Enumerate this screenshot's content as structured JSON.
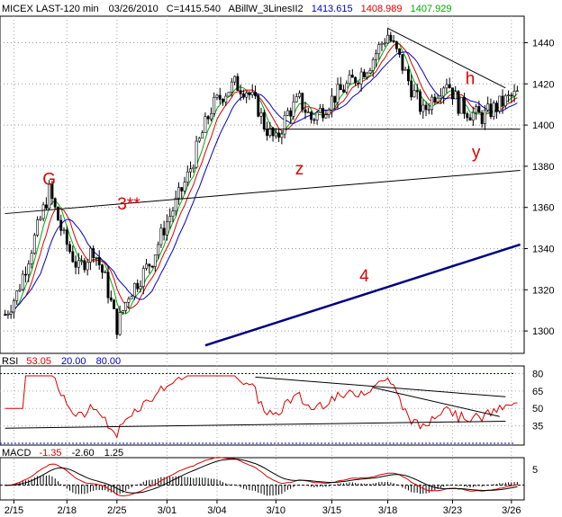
{
  "chart_data": [
    {
      "type": "candlestick",
      "header": {
        "symbol": "MICEX LAST-120 min",
        "date": "03/26/2010",
        "close": "C=1415.540",
        "indicator": "ABillW_3LinesII2",
        "ma_values": [
          {
            "value": "1413.615",
            "color": "#0000cc"
          },
          {
            "value": "1408.989",
            "color": "#dd0000"
          },
          {
            "value": "1407.929",
            "color": "#00aa00"
          }
        ]
      },
      "y_ticks": [
        1300,
        1320,
        1340,
        1360,
        1380,
        1400,
        1420,
        1440
      ],
      "ylim": [
        1290,
        1452
      ],
      "x_ticks": [
        "2/15",
        "2/18",
        "2/25",
        "3/01",
        "3/04",
        "3/10",
        "3/15",
        "3/18",
        "3/23",
        "3/26"
      ],
      "x_tick_index": [
        3,
        21,
        38,
        55,
        72,
        92,
        111,
        130,
        152,
        172
      ],
      "bar_count": 175,
      "moving_averages": [
        "#00aa00",
        "#dd0000",
        "#0000cc"
      ],
      "annotations": [
        {
          "text": "G",
          "bar": 15,
          "y": 1371,
          "color": "#dd0000"
        },
        {
          "text": "3**",
          "bar": 42,
          "y": 1359,
          "color": "#dd0000"
        },
        {
          "text": "z",
          "bar": 100,
          "y": 1376,
          "color": "#dd0000"
        },
        {
          "text": "4",
          "bar": 122,
          "y": 1324,
          "color": "#dd0000"
        },
        {
          "text": "h",
          "bar": 158,
          "y": 1420,
          "color": "#dd0000"
        },
        {
          "text": "y",
          "bar": 160,
          "y": 1384,
          "color": "#dd0000"
        }
      ],
      "trendlines": [
        {
          "from": [
            0,
            1357
          ],
          "to": [
            175,
            1378
          ],
          "color": "#000000",
          "width": 1
        },
        {
          "from": [
            68,
            1293
          ],
          "to": [
            175,
            1342
          ],
          "color": "#000080",
          "width": 2.5
        },
        {
          "from": [
            88,
            1398
          ],
          "to": [
            175,
            1398
          ],
          "color": "#000000",
          "width": 1
        },
        {
          "from": [
            130,
            1447
          ],
          "to": [
            170,
            1418
          ],
          "color": "#000000",
          "width": 1
        }
      ]
    },
    {
      "type": "line",
      "title": "RSI",
      "legend": [
        {
          "label": "53.05",
          "color": "#dd0000"
        },
        {
          "label": "20.00",
          "color": "#0000cc"
        },
        {
          "label": "80.00",
          "color": "#0000cc"
        }
      ],
      "y_ticks": [
        35,
        50,
        65,
        80
      ],
      "ylim": [
        20,
        85
      ],
      "levels": [
        20,
        80
      ],
      "trendlines": [
        {
          "from": [
            0,
            33
          ],
          "to": [
            170,
            39
          ]
        },
        {
          "from": [
            85,
            77
          ],
          "to": [
            170,
            60
          ]
        },
        {
          "from": [
            125,
            68
          ],
          "to": [
            168,
            43
          ]
        }
      ]
    },
    {
      "type": "line",
      "title": "MACD",
      "legend": [
        {
          "label": "-1.35",
          "color": "#dd0000"
        },
        {
          "label": "-2.60",
          "color": "#000000"
        },
        {
          "label": "1.25",
          "color": "#000000"
        }
      ],
      "y_ticks": [
        5
      ],
      "ylim": [
        -4,
        8
      ]
    }
  ]
}
